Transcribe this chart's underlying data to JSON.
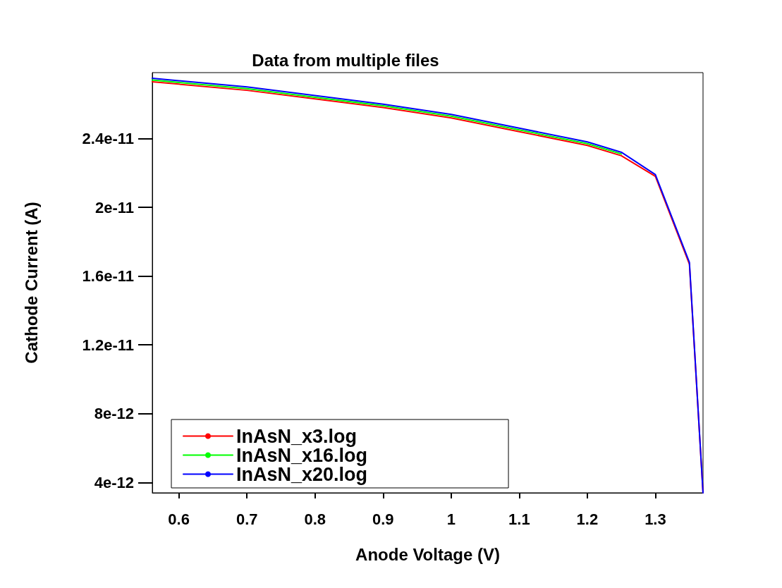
{
  "chart_data": {
    "type": "line",
    "subtitle": "Data from multiple files",
    "xlabel": "Anode Voltage (V)",
    "ylabel": "Cathode Current (A)",
    "x": [
      0.561,
      0.7,
      0.8,
      0.9,
      1.0,
      1.1,
      1.2,
      1.25,
      1.3,
      1.35,
      1.37
    ],
    "series": [
      {
        "name": "InAsN_x3.log",
        "color": "#ff0000",
        "values": [
          2.73e-11,
          2.68e-11,
          2.63e-11,
          2.58e-11,
          2.52e-11,
          2.44e-11,
          2.36e-11,
          2.3e-11,
          2.18e-11,
          1.67e-11,
          3.4e-12
        ]
      },
      {
        "name": "InAsN_x16.log",
        "color": "#00ff00",
        "values": [
          2.74e-11,
          2.69e-11,
          2.64e-11,
          2.59e-11,
          2.53e-11,
          2.45e-11,
          2.37e-11,
          2.31e-11,
          null,
          null,
          null
        ]
      },
      {
        "name": "InAsN_x20.log",
        "color": "#0000ff",
        "values": [
          2.75e-11,
          2.7e-11,
          2.65e-11,
          2.6e-11,
          2.54e-11,
          2.46e-11,
          2.38e-11,
          2.32e-11,
          2.19e-11,
          1.68e-11,
          3.4e-12
        ]
      }
    ],
    "xlim": [
      0.561,
      1.37
    ],
    "xticks": [
      0.6,
      0.7,
      0.8,
      0.9,
      1,
      1.1,
      1.2,
      1.3
    ],
    "ylim": [
      3.4e-12,
      2.783e-11
    ],
    "yticks": [
      4e-12,
      8e-12,
      1.2e-11,
      1.6e-11,
      2e-11,
      2.4e-11
    ],
    "legend": "bottom left",
    "marker": "none",
    "line_style": "solid",
    "grid": false
  }
}
